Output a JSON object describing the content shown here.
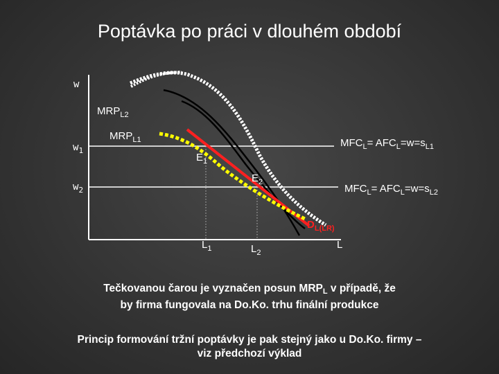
{
  "title": "Poptávka po práci v dlouhém období",
  "axes": {
    "y_label": "w",
    "x_label": "L"
  },
  "wage_ticks": [
    {
      "base": "w",
      "sub": "1"
    },
    {
      "base": "w",
      "sub": "2"
    }
  ],
  "quantity_ticks": [
    {
      "base": "L",
      "sub": "1"
    },
    {
      "base": "L",
      "sub": "2"
    }
  ],
  "curves": {
    "mrp_l2": {
      "base": "MRP",
      "sub": "L2"
    },
    "mrp_l1": {
      "base": "MRP",
      "sub": "L1"
    },
    "d_lr": {
      "base": "D",
      "sub": "L(LR)",
      "color": "#ff2020"
    },
    "shift_dotted_color": "#ffff00"
  },
  "equilibria": [
    {
      "base": "E",
      "sub": "1"
    },
    {
      "base": "E",
      "sub": "2"
    }
  ],
  "mfc_lines": [
    {
      "p1": "MFC",
      "s1": "L",
      "p2": "= AFC",
      "s2": "L",
      "p3": "=w=s",
      "s3": "L1"
    },
    {
      "p1": "MFC",
      "s1": "L",
      "p2": "= AFC",
      "s2": "L",
      "p3": "=w=s",
      "s3": "L2"
    }
  ],
  "note_1": {
    "line1_a": "Tečkovanou čarou je vyznačen posun MRP",
    "line1_sub": "L",
    "line1_b": " v případě, že",
    "line2": "by firma fungovala na Do.Ko. trhu finální produkce"
  },
  "note_2": {
    "line1": "Princip formování tržní poptávky je pak stejný jako u Do.Ko. firmy –",
    "line2": "viz předchozí výklad"
  }
}
